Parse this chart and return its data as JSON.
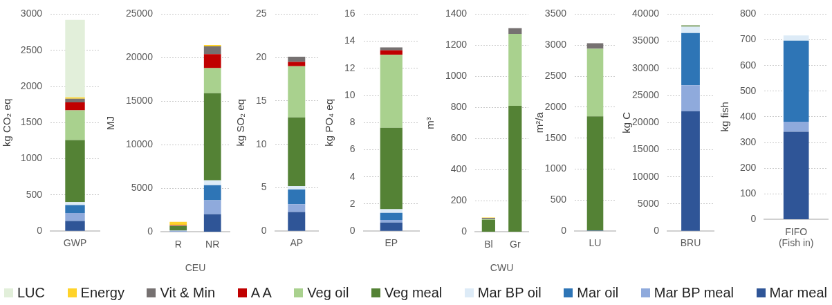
{
  "chart_data": [
    {
      "type": "bar",
      "stacked": true,
      "ylabel": "kg CO₂ eq",
      "categories": [
        "GWP"
      ],
      "ylim": [
        0,
        3000
      ],
      "yticks": [
        0,
        500,
        1000,
        1500,
        2000,
        2500,
        3000
      ],
      "grid": "y",
      "legend": "bottom",
      "series": [
        {
          "name": "Mar meal",
          "color": "#2f5597",
          "values": [
            140
          ]
        },
        {
          "name": "Mar BP meal",
          "color": "#8faadc",
          "values": [
            110
          ]
        },
        {
          "name": "Mar oil",
          "color": "#2e75b6",
          "values": [
            110
          ]
        },
        {
          "name": "Mar BP oil",
          "color": "#ddebf7",
          "values": [
            40
          ]
        },
        {
          "name": "Veg meal",
          "color": "#548235",
          "values": [
            860
          ]
        },
        {
          "name": "Veg oil",
          "color": "#a9d18e",
          "values": [
            410
          ]
        },
        {
          "name": "A A",
          "color": "#c00000",
          "values": [
            110
          ]
        },
        {
          "name": "Vit & Min",
          "color": "#767171",
          "values": [
            50
          ]
        },
        {
          "name": "Energy",
          "color": "#ffd32a",
          "values": [
            20
          ]
        },
        {
          "name": "LUC",
          "color": "#e2efda",
          "values": [
            1070
          ]
        }
      ]
    },
    {
      "type": "bar",
      "stacked": true,
      "ylabel": "MJ",
      "xlabel": "CEU",
      "categories": [
        "R",
        "NR"
      ],
      "ylim": [
        0,
        25000
      ],
      "yticks": [
        0,
        5000,
        10000,
        15000,
        20000,
        25000
      ],
      "grid": "y",
      "series": [
        {
          "color": "#2f5597",
          "values": [
            null,
            2030
          ]
        },
        {
          "color": "#8faadc",
          "values": [
            150,
            1620
          ]
        },
        {
          "color": "#2e75b6",
          "values": [
            null,
            1720
          ]
        },
        {
          "color": "#ddebf7",
          "values": [
            20,
            550
          ]
        },
        {
          "color": "#548235",
          "values": [
            500,
            10000
          ]
        },
        {
          "color": "#a9d18e",
          "values": [
            50,
            2890
          ]
        },
        {
          "color": "#c00000",
          "values": [
            80,
            1590
          ]
        },
        {
          "color": "#767171",
          "values": [
            null,
            910
          ]
        },
        {
          "color": "#ffd32a",
          "values": [
            370,
            160
          ]
        }
      ]
    },
    {
      "type": "bar",
      "stacked": true,
      "ylabel": "kg SO₂ eq",
      "categories": [
        "AP"
      ],
      "ylim": [
        0,
        25
      ],
      "yticks": [
        0,
        5,
        10,
        15,
        20,
        25
      ],
      "grid": "y",
      "series": [
        {
          "color": "#2f5597",
          "values": [
            2.2
          ]
        },
        {
          "color": "#8faadc",
          "values": [
            0.9
          ]
        },
        {
          "color": "#2e75b6",
          "values": [
            1.7
          ]
        },
        {
          "color": "#ddebf7",
          "values": [
            0.4
          ]
        },
        {
          "color": "#548235",
          "values": [
            7.9
          ]
        },
        {
          "color": "#a9d18e",
          "values": [
            5.9
          ]
        },
        {
          "color": "#c00000",
          "values": [
            0.5
          ]
        },
        {
          "color": "#767171",
          "values": [
            0.6
          ]
        }
      ]
    },
    {
      "type": "bar",
      "stacked": true,
      "ylabel": "kg PO₄ eq",
      "categories": [
        "EP"
      ],
      "ylim": [
        0,
        16
      ],
      "yticks": [
        0,
        2,
        4,
        6,
        8,
        10,
        12,
        14,
        16
      ],
      "grid": "y",
      "series": [
        {
          "color": "#2f5597",
          "values": [
            0.63
          ]
        },
        {
          "color": "#8faadc",
          "values": [
            0.2
          ]
        },
        {
          "color": "#2e75b6",
          "values": [
            0.52
          ]
        },
        {
          "color": "#ddebf7",
          "values": [
            0.27
          ]
        },
        {
          "color": "#548235",
          "values": [
            6.0
          ]
        },
        {
          "color": "#a9d18e",
          "values": [
            5.38
          ]
        },
        {
          "color": "#c00000",
          "values": [
            0.33
          ]
        },
        {
          "color": "#767171",
          "values": [
            0.22
          ]
        }
      ]
    },
    {
      "type": "bar",
      "stacked": true,
      "ylabel": "m³",
      "xlabel": "CWU",
      "categories": [
        "Bl",
        "Gr"
      ],
      "ylim": [
        0,
        1400
      ],
      "yticks": [
        0,
        200,
        400,
        600,
        800,
        1000,
        1200,
        1400
      ],
      "grid": "y",
      "series": [
        {
          "color": "#548235",
          "values": [
            77,
            811
          ]
        },
        {
          "color": "#a9d18e",
          "values": [
            5,
            462
          ]
        },
        {
          "color": "#767171",
          "values": [
            8,
            37
          ]
        },
        {
          "color": "#ffd32a",
          "values": [
            3,
            null
          ]
        }
      ]
    },
    {
      "type": "bar",
      "stacked": true,
      "ylabel": "m²/a",
      "categories": [
        "LU"
      ],
      "ylim": [
        0,
        3500
      ],
      "yticks": [
        0,
        500,
        1000,
        1500,
        2000,
        2500,
        3000,
        3500
      ],
      "grid": "y",
      "series": [
        {
          "color": "#2f5597",
          "values": [
            10
          ]
        },
        {
          "color": "#548235",
          "values": [
            1840
          ]
        },
        {
          "color": "#a9d18e",
          "values": [
            1090
          ]
        },
        {
          "color": "#767171",
          "values": [
            90
          ]
        }
      ]
    },
    {
      "type": "bar",
      "stacked": true,
      "ylabel": "kg C",
      "categories": [
        "BRU"
      ],
      "ylim": [
        0,
        40000
      ],
      "yticks": [
        0,
        5000,
        10000,
        15000,
        20000,
        25000,
        30000,
        35000,
        40000
      ],
      "grid": "y",
      "series": [
        {
          "color": "#2f5597",
          "values": [
            22100
          ]
        },
        {
          "color": "#8faadc",
          "values": [
            4800
          ]
        },
        {
          "color": "#2e75b6",
          "values": [
            9600
          ]
        },
        {
          "color": "#ddebf7",
          "values": [
            1200
          ]
        },
        {
          "color": "#548235",
          "values": [
            200
          ]
        }
      ]
    },
    {
      "type": "bar",
      "stacked": true,
      "ylabel": "kg fish",
      "categories": [
        "FIFO (Fish in)"
      ],
      "ylim": [
        0,
        800
      ],
      "yticks": [
        0,
        100,
        200,
        300,
        400,
        500,
        600,
        700,
        800
      ],
      "grid": "y",
      "series": [
        {
          "color": "#2f5597",
          "values": [
            342
          ]
        },
        {
          "color": "#8faadc",
          "values": [
            39
          ]
        },
        {
          "color": "#2e75b6",
          "values": [
            316
          ]
        },
        {
          "color": "#ddebf7",
          "values": [
            20
          ]
        }
      ]
    }
  ]
}
